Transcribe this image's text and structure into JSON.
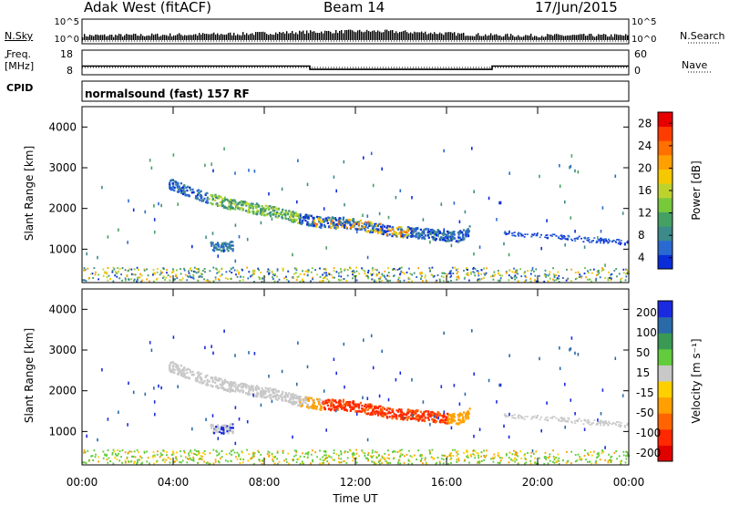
{
  "header": {
    "radar": "Adak West (fitACF)",
    "beam": "Beam 14",
    "date": "17/Jun/2015"
  },
  "info_labels": {
    "nsky": "N.Sky",
    "nsearch": "N.Search",
    "freq_line1": "Freq.",
    "freq_line2": "[MHz]",
    "nave": "Nave",
    "cpid": "CPID",
    "program": "normalsound (fast) 157 RF"
  },
  "colors": {
    "power": [
      "#0a2dd9",
      "#2a6ad0",
      "#3d8a8a",
      "#45a064",
      "#78c83c",
      "#bed22d",
      "#f5c800",
      "#ffa000",
      "#ff7000",
      "#ff3c00",
      "#e60000"
    ],
    "velocity": [
      "#e10000",
      "#ff2800",
      "#ff6400",
      "#ffa000",
      "#ffd000",
      "#c8c8c8",
      "#62cc3c",
      "#3a9a54",
      "#2a6aa8",
      "#1a2ae0"
    ]
  },
  "chart_data": [
    {
      "type": "line",
      "panel": "noise",
      "ylabel_left": "N.Sky",
      "ylabel_right": "N.Search",
      "yticks_left": [
        "10^5",
        "10^0"
      ],
      "yticks_right": [
        "10^5",
        "10^0"
      ],
      "series": [
        {
          "name": "N.Sky",
          "x_hours": [
            0,
            1,
            2,
            3,
            4,
            5,
            6,
            7,
            8,
            9,
            10,
            11,
            12,
            13,
            14,
            15,
            16,
            17,
            18,
            19,
            20,
            21,
            22,
            23,
            24
          ],
          "level": [
            0.22,
            0.22,
            0.24,
            0.25,
            0.27,
            0.3,
            0.33,
            0.35,
            0.4,
            0.45,
            0.5,
            0.52,
            0.55,
            0.55,
            0.5,
            0.45,
            0.38,
            0.3,
            0.25,
            0.22,
            0.22,
            0.22,
            0.22,
            0.22,
            0.22
          ]
        }
      ]
    },
    {
      "type": "line",
      "panel": "frequency",
      "ylabel_left": "Freq. [MHz]",
      "ylabel_right": "Nave",
      "yticks_left": [
        "18",
        "8"
      ],
      "yticks_right": [
        "60",
        "0"
      ],
      "series": [
        {
          "name": "Freq.",
          "segments": [
            {
              "x0": 0,
              "x1": 10,
              "mhz": 11.5
            },
            {
              "x0": 10,
              "x1": 18,
              "mhz": 10.2
            },
            {
              "x0": 18,
              "x1": 24,
              "mhz": 11.5
            }
          ]
        }
      ]
    },
    {
      "type": "heatmap",
      "panel": "power",
      "xlabel": "",
      "ylabel": "Slant Range [km]",
      "xlim": [
        0,
        24
      ],
      "ylim": [
        180,
        4500
      ],
      "yticks": [
        "4000",
        "3000",
        "2000",
        "1000"
      ],
      "colorbar_label": "Power [dB]",
      "colorbar_ticks": [
        "28",
        "24",
        "20",
        "16",
        "12",
        "8",
        "4"
      ],
      "features": [
        {
          "name": "main-band",
          "x_hours": [
            3.8,
            4.5,
            5.5,
            6.5,
            7.5,
            8.5,
            9.5,
            10.5,
            11.5,
            12.5,
            13.5,
            14.5,
            15.5,
            16.5,
            17.0
          ],
          "range_km": [
            2600,
            2450,
            2250,
            2100,
            2000,
            1900,
            1750,
            1650,
            1650,
            1550,
            1450,
            1400,
            1350,
            1300,
            1450
          ]
        },
        {
          "name": "low-patch",
          "x_hours": [
            5.6,
            6.6
          ],
          "range_km": [
            950,
            1150
          ]
        },
        {
          "name": "far-tail",
          "x_hours": [
            18.5,
            24.0
          ],
          "range_km": [
            1400,
            1150
          ]
        }
      ]
    },
    {
      "type": "heatmap",
      "panel": "velocity",
      "xlabel": "Time UT",
      "ylabel": "Slant Range [km]",
      "xlim": [
        0,
        24
      ],
      "ylim": [
        180,
        4500
      ],
      "xticks": [
        "00:00",
        "04:00",
        "08:00",
        "12:00",
        "16:00",
        "20:00",
        "00:00"
      ],
      "yticks": [
        "4000",
        "3000",
        "2000",
        "1000"
      ],
      "colorbar_label": "Velocity [m s⁻¹]",
      "colorbar_ticks": [
        "200",
        "100",
        "50",
        "15",
        "-15",
        "-50",
        "-100",
        "-200"
      ]
    }
  ],
  "axis": {
    "xticks": [
      "00:00",
      "04:00",
      "08:00",
      "12:00",
      "16:00",
      "20:00",
      "00:00"
    ],
    "xlabel": "Time UT",
    "ylabel": "Slant Range [km]",
    "yticks": [
      "4000",
      "3000",
      "2000",
      "1000"
    ],
    "power_label": "Power [dB]",
    "power_ticks": [
      "28",
      "24",
      "20",
      "16",
      "12",
      "8",
      "4"
    ],
    "velocity_label": "Velocity [m s⁻¹]",
    "velocity_ticks": [
      "200",
      "100",
      "50",
      "15",
      "-15",
      "-50",
      "-100",
      "-200"
    ]
  }
}
